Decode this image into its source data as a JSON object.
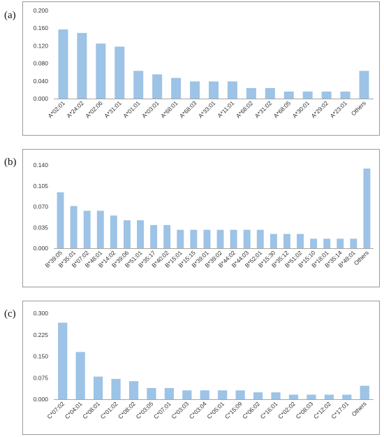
{
  "panels": [
    {
      "letter": "(a)"
    },
    {
      "letter": "(b)"
    },
    {
      "letter": "(c)"
    }
  ],
  "colors": {
    "bar": "#9dc3e6",
    "axis": "#a6a6a6"
  },
  "chart_data": [
    {
      "type": "bar",
      "title": "",
      "xlabel": "",
      "ylabel": "",
      "ylim": [
        0,
        0.2
      ],
      "yticks": [
        "0.000",
        "0.040",
        "0.080",
        "0.120",
        "0.160",
        "0.200"
      ],
      "ytick_values": [
        0,
        0.04,
        0.08,
        0.12,
        0.16,
        0.2
      ],
      "categories": [
        "A*02:01",
        "A*24:02",
        "A*02:06",
        "A*31:01",
        "A*01:01",
        "A*03:01",
        "A*68:01",
        "A*68:03",
        "A*33:01",
        "A*11:01",
        "A*68:02",
        "A*31:02",
        "A*68:05",
        "A*30:01",
        "A*29:02",
        "A*23:01",
        "Others"
      ],
      "values": [
        0.157,
        0.149,
        0.125,
        0.118,
        0.063,
        0.055,
        0.047,
        0.039,
        0.039,
        0.039,
        0.024,
        0.024,
        0.016,
        0.016,
        0.016,
        0.016,
        0.063
      ],
      "grid": false,
      "legend": "none"
    },
    {
      "type": "bar",
      "title": "",
      "xlabel": "",
      "ylabel": "",
      "ylim": [
        0,
        0.14
      ],
      "yticks": [
        "0.000",
        "0.035",
        "0.070",
        "0.105",
        "0.140"
      ],
      "ytick_values": [
        0,
        0.035,
        0.07,
        0.105,
        0.14
      ],
      "categories": [
        "B*39:05",
        "B*35:01",
        "B*07:02",
        "B*48:01",
        "B*14:02",
        "B*39:06",
        "B*51:01",
        "B*35:17",
        "B*40:02",
        "B*15:01",
        "B*15:15",
        "B*39:01",
        "B*39:02",
        "B*44:02",
        "B*44:03",
        "B*52:01",
        "B*15:30",
        "B*35:12",
        "B*51:02",
        "B*15:10",
        "B*18:01",
        "B*35:14",
        "B*49:01",
        "Others"
      ],
      "values": [
        0.094,
        0.071,
        0.063,
        0.063,
        0.055,
        0.047,
        0.047,
        0.039,
        0.039,
        0.031,
        0.031,
        0.031,
        0.031,
        0.031,
        0.031,
        0.031,
        0.024,
        0.024,
        0.024,
        0.016,
        0.016,
        0.016,
        0.016,
        0.134
      ],
      "grid": false,
      "legend": "none"
    },
    {
      "type": "bar",
      "title": "",
      "xlabel": "",
      "ylabel": "",
      "ylim": [
        0,
        0.3
      ],
      "yticks": [
        "0.000",
        "0.075",
        "0.150",
        "0.225",
        "0.300"
      ],
      "ytick_values": [
        0,
        0.075,
        0.15,
        0.225,
        0.3
      ],
      "categories": [
        "C*07:02",
        "C*04:01",
        "C*08:01",
        "C*01:02",
        "C*08:02",
        "C*03:05",
        "C*07:01",
        "C*03:03",
        "C*03:04",
        "C*05:01",
        "C*15:09",
        "C*06:02",
        "C*16:01",
        "C*02:02",
        "C*08:03",
        "C*12:02",
        "C*17:01",
        "Others"
      ],
      "values": [
        0.267,
        0.165,
        0.079,
        0.071,
        0.063,
        0.039,
        0.039,
        0.031,
        0.031,
        0.031,
        0.031,
        0.024,
        0.024,
        0.016,
        0.016,
        0.016,
        0.016,
        0.047
      ],
      "grid": false,
      "legend": "none"
    }
  ]
}
